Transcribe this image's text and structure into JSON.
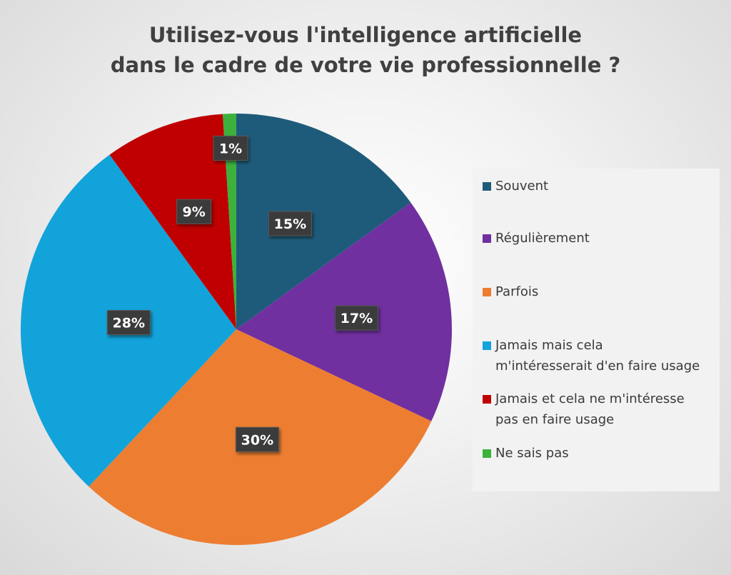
{
  "chart_data": {
    "type": "pie",
    "title_lines": [
      "Utilisez-vous l'intelligence artificielle",
      "dans le cadre de votre vie professionnelle ?"
    ],
    "legend_position": "right",
    "slices": [
      {
        "label": "Souvent",
        "value": 15,
        "display": "15%",
        "color": "#1e5b7a"
      },
      {
        "label": "Régulièrement",
        "value": 17,
        "display": "17%",
        "color": "#7030a0"
      },
      {
        "label": "Parfois",
        "value": 30,
        "display": "30%",
        "color": "#ed7d31"
      },
      {
        "label": "Jamais mais cela\nm'intéresserait d'en faire usage",
        "value": 28,
        "display": "28%",
        "color": "#12a3da"
      },
      {
        "label": "Jamais et cela ne m'intéresse\npas en faire usage",
        "value": 9,
        "display": "9%",
        "color": "#c00000"
      },
      {
        "label": "Ne sais pas",
        "value": 1,
        "display": "1%",
        "color": "#3cb23c"
      }
    ]
  }
}
